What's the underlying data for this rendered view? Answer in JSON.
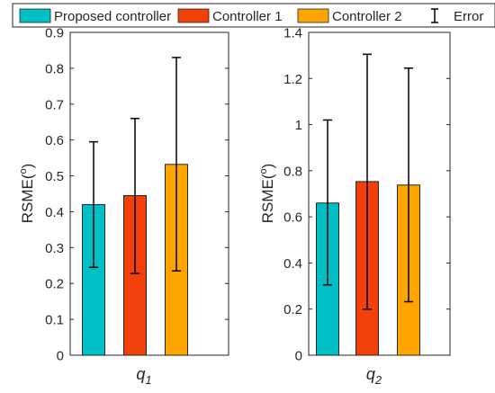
{
  "legend": {
    "items": [
      {
        "label": "Proposed controller",
        "color": "#00BFC4"
      },
      {
        "label": "Controller 1",
        "color": "#F2400A"
      },
      {
        "label": "Controller 2",
        "color": "#FFA500"
      },
      {
        "label": "Error",
        "kind": "errorbar",
        "color": "#000000"
      }
    ]
  },
  "chart_data": [
    {
      "type": "bar",
      "categories": [
        "q1"
      ],
      "xlabel": "q",
      "xlabel_subscript": "1",
      "ylabel": "RSME(",
      "ylabel_superscript": "o",
      "ylabel_close": ")",
      "ylim": [
        0,
        0.9
      ],
      "yticks": [
        "0",
        "0.1",
        "0.2",
        "0.3",
        "0.4",
        "0.5",
        "0.6",
        "0.7",
        "0.8",
        "0.9"
      ],
      "series": [
        {
          "name": "Proposed controller",
          "values": [
            0.42
          ],
          "error_low": [
            0.245
          ],
          "error_high": [
            0.595
          ]
        },
        {
          "name": "Controller 1",
          "values": [
            0.445
          ],
          "error_low": [
            0.228
          ],
          "error_high": [
            0.66
          ]
        },
        {
          "name": "Controller 2",
          "values": [
            0.532
          ],
          "error_low": [
            0.235
          ],
          "error_high": [
            0.83
          ]
        }
      ]
    },
    {
      "type": "bar",
      "categories": [
        "q2"
      ],
      "xlabel": "q",
      "xlabel_subscript": "2",
      "ylabel": "RSME(",
      "ylabel_superscript": "o",
      "ylabel_close": ")",
      "ylim": [
        0,
        1.4
      ],
      "yticks": [
        "0",
        "0.2",
        "0.4",
        "0.6",
        "0.8",
        "1",
        "1.2",
        "1.4"
      ],
      "series": [
        {
          "name": "Proposed controller",
          "values": [
            0.66
          ],
          "error_low": [
            0.305
          ],
          "error_high": [
            1.02
          ]
        },
        {
          "name": "Controller 1",
          "values": [
            0.753
          ],
          "error_low": [
            0.2
          ],
          "error_high": [
            1.305
          ]
        },
        {
          "name": "Controller 2",
          "values": [
            0.738
          ],
          "error_low": [
            0.232
          ],
          "error_high": [
            1.245
          ]
        }
      ]
    }
  ]
}
